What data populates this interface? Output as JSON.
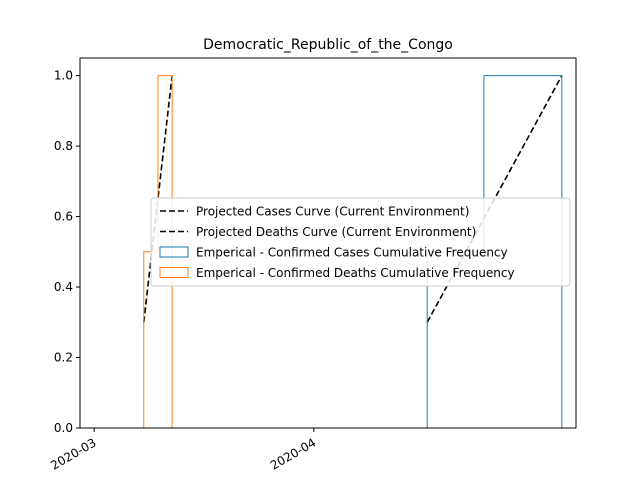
{
  "chart_data": {
    "type": "line",
    "title": "Democratic_Republic_of_the_Congo",
    "xlabel": "",
    "ylabel": "",
    "x_axis": {
      "type": "date",
      "range": [
        "2020-02-28",
        "2020-05-08"
      ],
      "ticks": [
        {
          "date": "2020-03-01",
          "label": "2020-03"
        },
        {
          "date": "2020-04-01",
          "label": "2020-04"
        }
      ]
    },
    "y_axis": {
      "range": [
        0,
        1.05
      ],
      "ticks": [
        0.0,
        0.2,
        0.4,
        0.6,
        0.8,
        1.0
      ],
      "tick_labels": [
        "0.0",
        "0.2",
        "0.4",
        "0.6",
        "0.8",
        "1.0"
      ]
    },
    "grid": false,
    "legend": {
      "placement": "center-right",
      "entries": [
        {
          "label": "Projected Cases Curve (Current Environment)",
          "style": "dashed-line",
          "color": "#000000"
        },
        {
          "label": "Projected Deaths Curve (Current Environment)",
          "style": "dashed-line",
          "color": "#000000"
        },
        {
          "label": "Emperical - Confirmed Cases Cumulative Frequency",
          "style": "box",
          "color": "#1f77b4"
        },
        {
          "label": "Emperical - Confirmed Deaths Cumulative Frequency",
          "style": "box",
          "color": "#ff7f0e"
        }
      ]
    },
    "series": [
      {
        "type": "line",
        "style": "dashed",
        "color": "#000000",
        "points": [
          {
            "x": "2020-04-17",
            "y": 0.3
          },
          {
            "x": "2020-05-06",
            "y": 1.0
          }
        ]
      },
      {
        "type": "line",
        "style": "dashed",
        "color": "#000000",
        "points": [
          {
            "x": "2020-03-08",
            "y": 0.3
          },
          {
            "x": "2020-03-12",
            "y": 1.0
          }
        ]
      },
      {
        "type": "step",
        "color": "#1f77b4",
        "points": [
          {
            "x": "2020-04-17",
            "y": 0.0
          },
          {
            "x": "2020-04-17",
            "y": 0.5
          },
          {
            "x": "2020-04-25",
            "y": 0.5
          },
          {
            "x": "2020-04-25",
            "y": 1.0
          },
          {
            "x": "2020-05-06",
            "y": 1.0
          },
          {
            "x": "2020-05-06",
            "y": 0.0
          }
        ]
      },
      {
        "type": "step",
        "color": "#ff7f0e",
        "points": [
          {
            "x": "2020-03-08",
            "y": 0.0
          },
          {
            "x": "2020-03-08",
            "y": 0.5
          },
          {
            "x": "2020-03-10",
            "y": 0.5
          },
          {
            "x": "2020-03-10",
            "y": 1.0
          },
          {
            "x": "2020-03-12",
            "y": 1.0
          },
          {
            "x": "2020-03-12",
            "y": 0.0
          }
        ]
      }
    ]
  }
}
